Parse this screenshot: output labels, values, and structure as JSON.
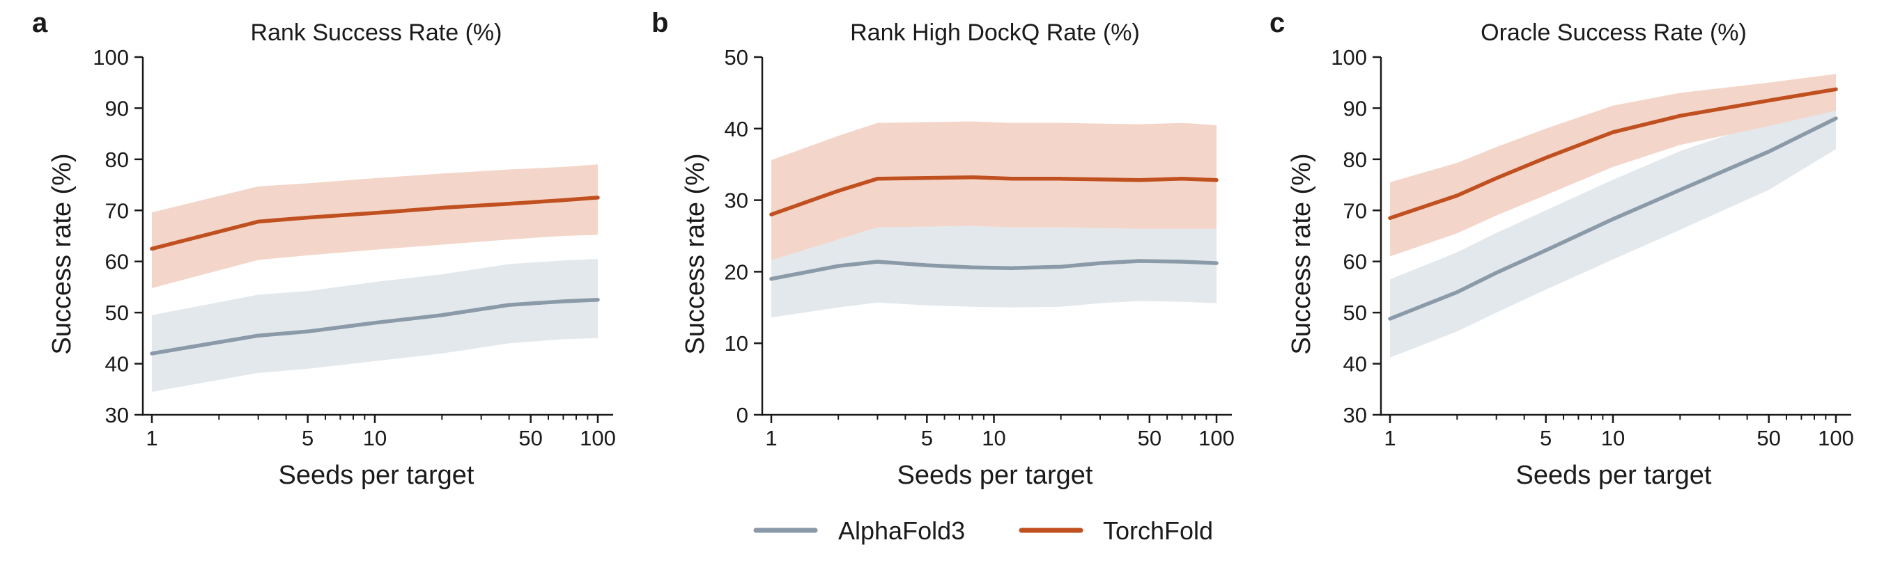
{
  "legend": {
    "items": [
      {
        "label": "AlphaFold3",
        "color": "#8a9aa8"
      },
      {
        "label": "TorchFold",
        "color": "#c0501f"
      }
    ]
  },
  "colors": {
    "alphafold_line": "#8a9aa8",
    "alphafold_band": "#e3e8ec",
    "torchfold_line": "#c0501f",
    "torchfold_band": "#f3d6c9"
  },
  "chart_data": [
    {
      "panel": "a",
      "type": "line",
      "title": "Rank Success Rate (%)",
      "xlabel": "Seeds per target",
      "ylabel": "Success rate (%)",
      "x_scale": "log",
      "xlim": [
        1,
        100
      ],
      "xticks": [
        1,
        5,
        10,
        50,
        100
      ],
      "ylim": [
        30,
        100
      ],
      "yticks": [
        30,
        40,
        50,
        60,
        70,
        80,
        90,
        100
      ],
      "series": [
        {
          "name": "AlphaFold3",
          "x": [
            1,
            3,
            5,
            10,
            20,
            40,
            70,
            100
          ],
          "y": [
            42,
            45.5,
            46.3,
            48,
            49.5,
            51.5,
            52.2,
            52.5
          ],
          "lower": [
            34.5,
            38.2,
            39,
            40.5,
            42,
            44,
            44.8,
            45
          ],
          "upper": [
            49.5,
            53.5,
            54.2,
            56,
            57.5,
            59.5,
            60.2,
            60.5
          ]
        },
        {
          "name": "TorchFold",
          "x": [
            1,
            3,
            5,
            10,
            20,
            40,
            70,
            100
          ],
          "y": [
            62.5,
            67.8,
            68.6,
            69.5,
            70.5,
            71.3,
            72,
            72.5
          ],
          "lower": [
            54.8,
            60.3,
            61.2,
            62.3,
            63.3,
            64.3,
            65,
            65.2
          ],
          "upper": [
            69.6,
            74.7,
            75.3,
            76.3,
            77.2,
            78,
            78.5,
            79
          ]
        }
      ]
    },
    {
      "panel": "b",
      "type": "line",
      "title": "Rank High DockQ Rate (%)",
      "xlabel": "Seeds per target",
      "ylabel": "Success rate (%)",
      "x_scale": "log",
      "xlim": [
        1,
        100
      ],
      "xticks": [
        1,
        5,
        10,
        50,
        100
      ],
      "ylim": [
        0,
        50
      ],
      "yticks": [
        0,
        10,
        20,
        30,
        40,
        50
      ],
      "series": [
        {
          "name": "AlphaFold3",
          "x": [
            1,
            2,
            3,
            5,
            8,
            12,
            20,
            30,
            45,
            70,
            100
          ],
          "y": [
            19,
            20.8,
            21.4,
            20.9,
            20.6,
            20.5,
            20.7,
            21.2,
            21.5,
            21.4,
            21.2
          ],
          "lower": [
            13.6,
            15,
            15.7,
            15.3,
            15.1,
            15,
            15.1,
            15.6,
            15.9,
            15.8,
            15.6
          ],
          "upper": [
            21.6,
            24.5,
            26.2,
            26.3,
            26.4,
            26.2,
            26.2,
            26.1,
            26,
            26,
            26
          ]
        },
        {
          "name": "TorchFold",
          "x": [
            1,
            2,
            3,
            5,
            8,
            12,
            20,
            30,
            45,
            70,
            100
          ],
          "y": [
            28,
            31.3,
            33,
            33.1,
            33.2,
            33,
            33,
            32.9,
            32.8,
            33,
            32.8
          ],
          "lower": [
            21.6,
            24.5,
            26.2,
            26.3,
            26.4,
            26.2,
            26.2,
            26.1,
            26,
            26,
            26
          ],
          "upper": [
            35.6,
            39,
            40.8,
            40.9,
            41,
            40.8,
            40.8,
            40.7,
            40.6,
            40.8,
            40.5
          ]
        }
      ]
    },
    {
      "panel": "c",
      "type": "line",
      "title": "Oracle Success Rate (%)",
      "xlabel": "Seeds per target",
      "ylabel": "Success rate (%)",
      "x_scale": "log",
      "xlim": [
        1,
        100
      ],
      "xticks": [
        1,
        5,
        10,
        50,
        100
      ],
      "ylim": [
        30,
        100
      ],
      "yticks": [
        30,
        40,
        50,
        60,
        70,
        80,
        90,
        100
      ],
      "series": [
        {
          "name": "AlphaFold3",
          "x": [
            1,
            2,
            3,
            5,
            10,
            20,
            50,
            100
          ],
          "y": [
            48.8,
            54,
            57.8,
            62.2,
            68.3,
            74,
            81.5,
            88
          ],
          "lower": [
            41.2,
            46.3,
            50,
            54.5,
            60.4,
            66.2,
            74,
            82
          ],
          "upper": [
            56.5,
            61.8,
            65.6,
            70,
            76,
            81.6,
            87.5,
            91
          ]
        },
        {
          "name": "TorchFold",
          "x": [
            1,
            2,
            3,
            5,
            10,
            20,
            50,
            100
          ],
          "y": [
            68.5,
            72.9,
            76.3,
            80.3,
            85.3,
            88.5,
            91.5,
            93.7
          ],
          "lower": [
            61,
            65.5,
            69,
            73,
            78.5,
            82.8,
            86.5,
            89.5
          ],
          "upper": [
            75.5,
            79.3,
            82.4,
            86,
            90.5,
            93,
            95,
            96.7
          ]
        }
      ]
    }
  ]
}
